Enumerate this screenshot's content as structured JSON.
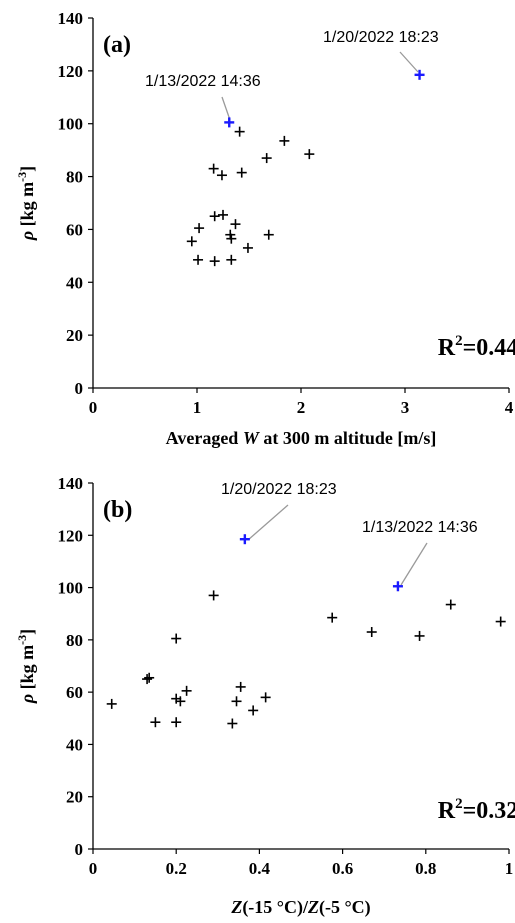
{
  "chart_data": [
    {
      "type": "scatter",
      "panel_label": "(a)",
      "xlabel_prefix": "Averaged ",
      "xlabel_var": "W",
      "xlabel_suffix": " at 300 m altitude [m/s]",
      "ylabel_var": "ρ",
      "ylabel_unit": " [kg m",
      "ylabel_exp": "-3",
      "ylabel_close": "]",
      "xlim": [
        0,
        4
      ],
      "ylim": [
        0,
        140
      ],
      "xticks": [
        0,
        1,
        2,
        3,
        4
      ],
      "xtick_labels": [
        "0",
        "1",
        "2",
        "3",
        "4"
      ],
      "yticks": [
        0,
        20,
        40,
        60,
        80,
        100,
        120,
        140
      ],
      "ytick_labels": [
        "0",
        "20",
        "40",
        "60",
        "80",
        "100",
        "120",
        "140"
      ],
      "grid": false,
      "r2_prefix": "R",
      "r2_exp": "2",
      "r2_value": "=0.44",
      "points": [
        {
          "x": 1.41,
          "y": 97
        },
        {
          "x": 1.84,
          "y": 93.5
        },
        {
          "x": 2.08,
          "y": 88.5
        },
        {
          "x": 1.67,
          "y": 87
        },
        {
          "x": 1.16,
          "y": 83
        },
        {
          "x": 1.43,
          "y": 81.5
        },
        {
          "x": 1.24,
          "y": 80.5
        },
        {
          "x": 1.17,
          "y": 65
        },
        {
          "x": 1.25,
          "y": 65.5
        },
        {
          "x": 1.37,
          "y": 62
        },
        {
          "x": 1.02,
          "y": 60.5
        },
        {
          "x": 1.69,
          "y": 58
        },
        {
          "x": 1.32,
          "y": 58
        },
        {
          "x": 1.33,
          "y": 56.5
        },
        {
          "x": 0.95,
          "y": 55.5
        },
        {
          "x": 1.49,
          "y": 53
        },
        {
          "x": 1.01,
          "y": 48.5
        },
        {
          "x": 1.17,
          "y": 48
        },
        {
          "x": 1.33,
          "y": 48.5
        }
      ],
      "highlighted_points": [
        {
          "x": 1.31,
          "y": 100.5,
          "label": "1/13/2022 14:36"
        },
        {
          "x": 3.14,
          "y": 118.5,
          "label": "1/20/2022 18:23"
        }
      ],
      "highlight_color": "#1a1aff",
      "marker_color": "#000000"
    },
    {
      "type": "scatter",
      "panel_label": "(b)",
      "xlabel_z1": "Z",
      "xlabel_mid": "(-15 °C)/",
      "xlabel_z2": "Z",
      "xlabel_end": "(-5 °C)",
      "ylabel_var": "ρ",
      "ylabel_unit": " [kg m",
      "ylabel_exp": "-3",
      "ylabel_close": "]",
      "xlim": [
        0,
        1
      ],
      "ylim": [
        0,
        140
      ],
      "xticks": [
        0,
        0.2,
        0.4,
        0.6,
        0.8,
        1
      ],
      "xtick_labels": [
        "0",
        "0.2",
        "0.4",
        "0.6",
        "0.8",
        "1"
      ],
      "yticks": [
        0,
        20,
        40,
        60,
        80,
        100,
        120,
        140
      ],
      "ytick_labels": [
        "0",
        "20",
        "40",
        "60",
        "80",
        "100",
        "120",
        "140"
      ],
      "grid": false,
      "r2_prefix": "R",
      "r2_exp": "2",
      "r2_value": "=0.32",
      "points": [
        {
          "x": 0.29,
          "y": 97
        },
        {
          "x": 0.86,
          "y": 93.5
        },
        {
          "x": 0.575,
          "y": 88.5
        },
        {
          "x": 0.98,
          "y": 87
        },
        {
          "x": 0.67,
          "y": 83
        },
        {
          "x": 0.785,
          "y": 81.5
        },
        {
          "x": 0.2,
          "y": 80.5
        },
        {
          "x": 0.13,
          "y": 65
        },
        {
          "x": 0.135,
          "y": 65.5
        },
        {
          "x": 0.355,
          "y": 62
        },
        {
          "x": 0.225,
          "y": 60.5
        },
        {
          "x": 0.415,
          "y": 58
        },
        {
          "x": 0.2,
          "y": 57.5
        },
        {
          "x": 0.21,
          "y": 56.5
        },
        {
          "x": 0.345,
          "y": 56.5
        },
        {
          "x": 0.045,
          "y": 55.5
        },
        {
          "x": 0.385,
          "y": 53
        },
        {
          "x": 0.15,
          "y": 48.5
        },
        {
          "x": 0.2,
          "y": 48.5
        },
        {
          "x": 0.335,
          "y": 48
        }
      ],
      "highlighted_points": [
        {
          "x": 0.365,
          "y": 118.5,
          "label": "1/20/2022 18:23"
        },
        {
          "x": 0.733,
          "y": 100.5,
          "label": "1/13/2022 14:36"
        }
      ],
      "highlight_color": "#1a1aff",
      "marker_color": "#000000"
    }
  ]
}
